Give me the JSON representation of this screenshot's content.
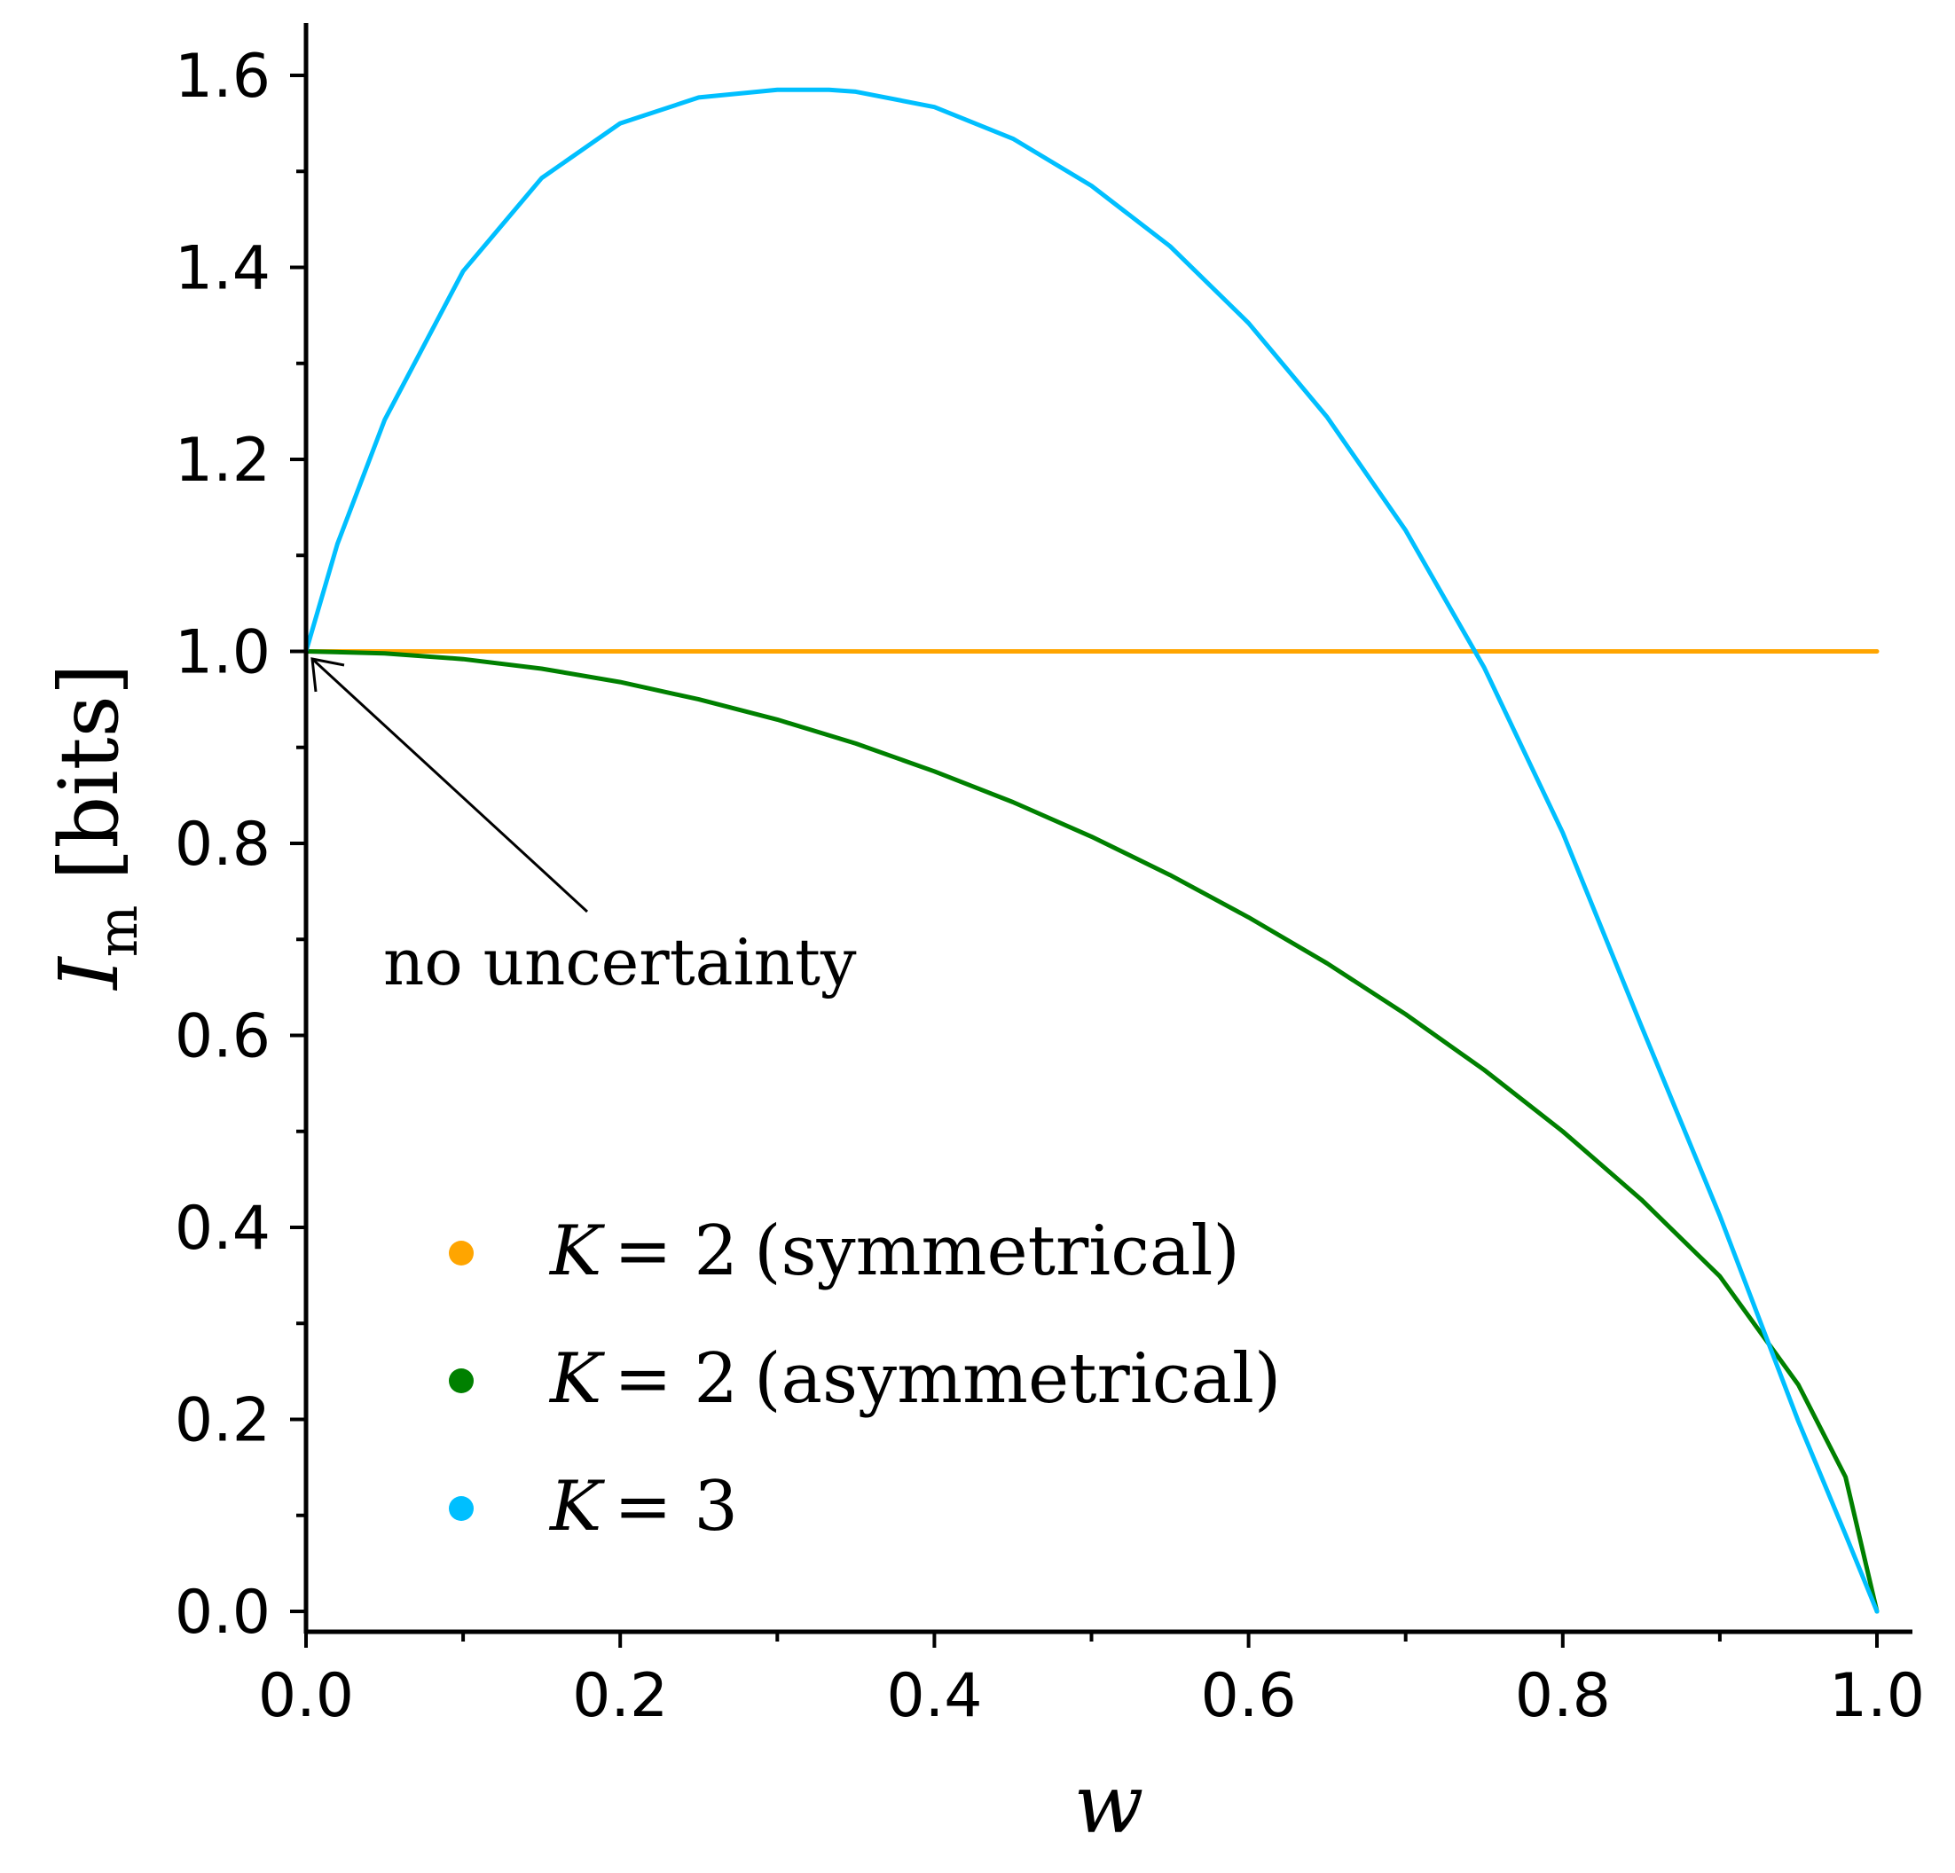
{
  "chart_data": {
    "type": "line",
    "title": "",
    "xlabel": "w",
    "ylabel": {
      "main": "I",
      "subscript": "m",
      "unit": "[bits]"
    },
    "xlim": [
      0.0,
      1.0
    ],
    "ylim": [
      0.0,
      1.6
    ],
    "grid": false,
    "legend_position": "lower-left",
    "x_ticks": [
      "0.0",
      "0.2",
      "0.4",
      "0.6",
      "0.8",
      "1.0"
    ],
    "y_ticks": [
      "0.0",
      "0.2",
      "0.4",
      "0.6",
      "0.8",
      "1.0",
      "1.2",
      "1.4",
      "1.6"
    ],
    "series": [
      {
        "name": "K = 2 (symmetrical)",
        "color": "#FFA500",
        "x": [
          0.0,
          0.1,
          0.2,
          0.3,
          0.4,
          0.5,
          0.6,
          0.7,
          0.8,
          0.9,
          1.0
        ],
        "y": [
          1.0,
          1.0,
          1.0,
          1.0,
          1.0,
          1.0,
          1.0,
          1.0,
          1.0,
          1.0,
          1.0
        ]
      },
      {
        "name": "K = 2 (asymmetrical)",
        "color": "#008000",
        "x": [
          0.0,
          0.05,
          0.1,
          0.15,
          0.2,
          0.25,
          0.3,
          0.35,
          0.4,
          0.45,
          0.5,
          0.55,
          0.6,
          0.65,
          0.7,
          0.75,
          0.8,
          0.85,
          0.9,
          0.95,
          0.98,
          1.0
        ],
        "y": [
          1.0,
          0.998,
          0.992,
          0.982,
          0.968,
          0.95,
          0.929,
          0.904,
          0.875,
          0.843,
          0.807,
          0.767,
          0.723,
          0.675,
          0.622,
          0.564,
          0.5,
          0.429,
          0.349,
          0.236,
          0.14,
          0.0
        ]
      },
      {
        "name": "K = 3",
        "color": "#00BFFF",
        "x": [
          0.0,
          0.02,
          0.05,
          0.1,
          0.15,
          0.2,
          0.25,
          0.3,
          0.333,
          0.35,
          0.4,
          0.45,
          0.5,
          0.55,
          0.6,
          0.65,
          0.7,
          0.75,
          0.8,
          0.85,
          0.9,
          0.95,
          0.98,
          1.0
        ],
        "y": [
          1.0,
          1.112,
          1.241,
          1.396,
          1.493,
          1.55,
          1.577,
          1.585,
          1.585,
          1.583,
          1.567,
          1.534,
          1.485,
          1.422,
          1.342,
          1.244,
          1.126,
          0.983,
          0.811,
          0.61,
          0.412,
          0.198,
          0.08,
          0.0
        ]
      }
    ],
    "annotations": [
      {
        "text": "no uncertainty",
        "points_to": {
          "x": 0.0,
          "y": 1.0
        }
      }
    ]
  },
  "legend": [
    {
      "label_var": "K",
      "label_eq": "= 2",
      "label_note": "(symmetrical)",
      "color": "#FFA500"
    },
    {
      "label_var": "K",
      "label_eq": "= 2",
      "label_note": "(asymmetrical)",
      "color": "#008000"
    },
    {
      "label_var": "K",
      "label_eq": "= 3",
      "label_note": "",
      "color": "#00BFFF"
    }
  ]
}
